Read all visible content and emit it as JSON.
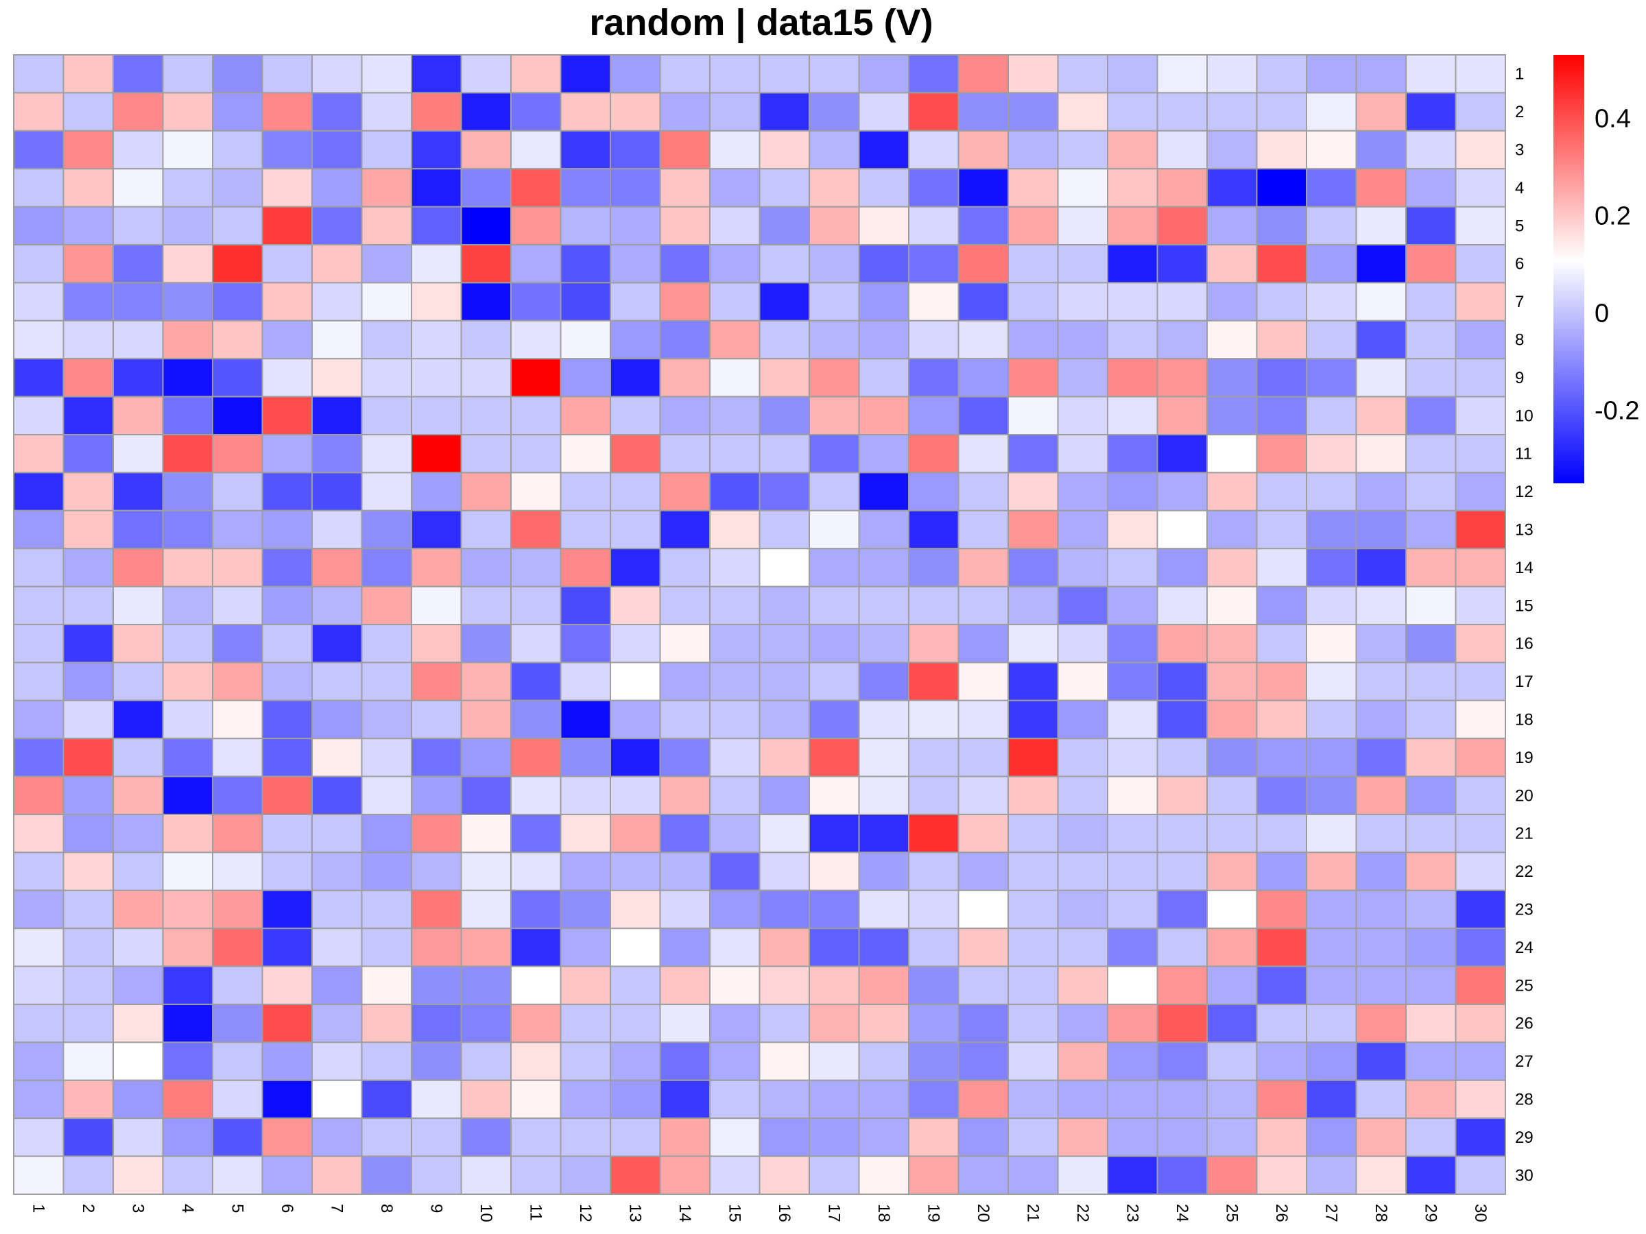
{
  "chart_data": {
    "type": "heatmap",
    "title": "random | data15 (V)",
    "row_labels": [
      "1",
      "2",
      "3",
      "4",
      "5",
      "6",
      "7",
      "8",
      "9",
      "10",
      "11",
      "12",
      "13",
      "14",
      "15",
      "16",
      "17",
      "18",
      "19",
      "20",
      "21",
      "22",
      "23",
      "24",
      "25",
      "26",
      "27",
      "28",
      "29",
      "30"
    ],
    "col_labels": [
      "1",
      "2",
      "3",
      "4",
      "5",
      "6",
      "7",
      "8",
      "9",
      "10",
      "11",
      "12",
      "13",
      "14",
      "15",
      "16",
      "17",
      "18",
      "19",
      "20",
      "21",
      "22",
      "23",
      "24",
      "25",
      "26",
      "27",
      "28",
      "29",
      "30"
    ],
    "color_scale": {
      "min": -0.35,
      "mid": 0.1,
      "max": 0.53,
      "low": "#0000FF",
      "mid_color": "#FFFFFF",
      "high": "#FF0000"
    },
    "legend_ticks": [
      0.4,
      0.2,
      0,
      -0.2
    ],
    "legend_tick_labels": [
      "0.4",
      "0.2",
      "0",
      "-0.2"
    ],
    "values": [
      [
        0.0,
        0.2,
        -0.15,
        0.0,
        -0.1,
        0.0,
        0.03,
        0.05,
        -0.27,
        0.02,
        0.2,
        -0.3,
        -0.07,
        0.0,
        0.0,
        0.0,
        0.0,
        -0.05,
        -0.15,
        0.3,
        0.17,
        0.0,
        -0.02,
        0.07,
        0.05,
        0.0,
        -0.05,
        -0.05,
        0.05,
        0.05
      ],
      [
        0.2,
        0.0,
        0.3,
        0.2,
        -0.08,
        0.3,
        -0.15,
        0.03,
        0.32,
        -0.3,
        -0.15,
        0.2,
        0.2,
        -0.05,
        -0.02,
        -0.27,
        -0.1,
        0.03,
        0.4,
        -0.1,
        -0.1,
        0.15,
        0.0,
        0.0,
        0.0,
        0.0,
        0.07,
        0.23,
        -0.25,
        0.0
      ],
      [
        -0.15,
        0.3,
        0.03,
        0.08,
        0.0,
        -0.12,
        -0.15,
        0.0,
        -0.25,
        0.23,
        0.06,
        -0.25,
        -0.18,
        0.32,
        0.06,
        0.17,
        -0.03,
        -0.3,
        0.03,
        0.23,
        -0.03,
        0.0,
        0.23,
        0.05,
        -0.03,
        0.15,
        0.12,
        -0.1,
        0.03,
        0.15
      ],
      [
        0.0,
        0.2,
        0.08,
        0.0,
        -0.03,
        0.17,
        -0.07,
        0.25,
        -0.3,
        -0.12,
        0.38,
        -0.12,
        -0.13,
        0.2,
        -0.05,
        0.0,
        0.2,
        0.0,
        -0.15,
        -0.32,
        0.2,
        0.08,
        0.2,
        0.25,
        -0.25,
        -0.35,
        -0.15,
        0.3,
        -0.05,
        0.03
      ],
      [
        -0.08,
        -0.05,
        0.0,
        -0.03,
        0.0,
        0.43,
        -0.15,
        0.2,
        -0.18,
        -0.35,
        0.28,
        -0.03,
        -0.05,
        0.2,
        0.03,
        -0.1,
        0.23,
        0.13,
        0.03,
        -0.15,
        0.25,
        0.06,
        0.25,
        0.35,
        -0.05,
        -0.1,
        0.0,
        0.06,
        -0.22,
        0.06
      ],
      [
        0.0,
        0.28,
        -0.15,
        0.17,
        0.45,
        0.0,
        0.2,
        -0.05,
        0.06,
        0.42,
        -0.05,
        -0.2,
        -0.05,
        -0.15,
        -0.05,
        0.0,
        -0.03,
        -0.18,
        -0.15,
        0.33,
        0.0,
        0.0,
        -0.3,
        -0.25,
        0.2,
        0.4,
        -0.07,
        -0.33,
        0.3,
        0.0
      ],
      [
        0.03,
        -0.12,
        -0.12,
        -0.1,
        -0.15,
        0.2,
        0.03,
        0.08,
        0.15,
        -0.33,
        -0.15,
        -0.22,
        0.0,
        0.28,
        0.0,
        -0.3,
        0.0,
        -0.08,
        0.12,
        -0.2,
        0.0,
        0.03,
        0.03,
        0.03,
        -0.05,
        0.0,
        0.03,
        0.08,
        0.0,
        0.2
      ],
      [
        0.05,
        0.03,
        0.03,
        0.25,
        0.2,
        -0.05,
        0.08,
        0.0,
        0.03,
        0.0,
        0.05,
        0.08,
        -0.08,
        -0.12,
        0.25,
        0.0,
        -0.03,
        -0.05,
        0.03,
        0.05,
        -0.05,
        -0.05,
        0.0,
        -0.03,
        0.12,
        0.2,
        0.0,
        -0.2,
        0.0,
        -0.05
      ],
      [
        -0.25,
        0.3,
        -0.25,
        -0.32,
        -0.2,
        0.05,
        0.15,
        0.03,
        0.03,
        0.03,
        0.55,
        -0.08,
        -0.3,
        0.23,
        0.08,
        0.2,
        0.28,
        0.0,
        -0.15,
        -0.08,
        0.3,
        -0.03,
        0.3,
        0.28,
        -0.1,
        -0.15,
        -0.12,
        0.06,
        0.0,
        0.0
      ],
      [
        0.03,
        -0.27,
        0.23,
        -0.15,
        -0.33,
        0.4,
        -0.3,
        0.0,
        0.0,
        0.0,
        0.0,
        0.25,
        0.0,
        -0.05,
        -0.03,
        -0.1,
        0.23,
        0.25,
        -0.08,
        -0.18,
        0.08,
        0.03,
        0.05,
        0.25,
        -0.1,
        -0.12,
        0.0,
        0.2,
        -0.12,
        0.03
      ],
      [
        0.2,
        -0.15,
        0.06,
        0.4,
        0.3,
        -0.05,
        -0.12,
        0.05,
        0.53,
        0.0,
        0.0,
        0.12,
        0.35,
        0.0,
        0.0,
        0.0,
        -0.15,
        -0.05,
        0.33,
        0.05,
        -0.15,
        0.03,
        -0.15,
        -0.28,
        0.1,
        0.28,
        0.17,
        0.13,
        0.0,
        0.0
      ],
      [
        -0.27,
        0.2,
        -0.25,
        -0.1,
        0.0,
        -0.2,
        -0.22,
        0.05,
        -0.07,
        0.25,
        0.12,
        0.0,
        0.0,
        0.28,
        -0.2,
        -0.15,
        0.0,
        -0.32,
        -0.08,
        0.0,
        0.17,
        -0.05,
        -0.08,
        -0.05,
        0.2,
        0.0,
        0.0,
        -0.05,
        0.0,
        -0.05
      ],
      [
        -0.08,
        0.2,
        -0.15,
        -0.12,
        -0.05,
        -0.07,
        0.03,
        -0.1,
        -0.27,
        0.0,
        0.35,
        0.0,
        0.0,
        -0.28,
        0.15,
        0.0,
        0.08,
        -0.05,
        -0.28,
        0.0,
        0.28,
        -0.05,
        0.15,
        0.1,
        -0.05,
        0.0,
        -0.1,
        -0.1,
        -0.05,
        0.42
      ],
      [
        0.0,
        -0.05,
        0.3,
        0.2,
        0.2,
        -0.15,
        0.28,
        -0.12,
        0.25,
        -0.05,
        -0.03,
        0.3,
        -0.28,
        0.0,
        0.03,
        0.1,
        -0.05,
        -0.05,
        -0.1,
        0.23,
        -0.12,
        -0.03,
        0.0,
        -0.08,
        0.2,
        0.05,
        -0.15,
        -0.25,
        0.23,
        0.23
      ],
      [
        0.0,
        0.0,
        0.06,
        -0.03,
        0.03,
        -0.07,
        -0.03,
        0.25,
        0.08,
        0.0,
        0.0,
        -0.22,
        0.17,
        0.0,
        0.0,
        -0.03,
        0.0,
        0.0,
        0.0,
        0.0,
        -0.03,
        -0.15,
        -0.05,
        0.05,
        0.12,
        -0.08,
        0.03,
        0.05,
        0.08,
        0.03
      ],
      [
        0.0,
        -0.25,
        0.2,
        0.0,
        -0.12,
        0.0,
        -0.27,
        0.0,
        0.2,
        -0.1,
        0.03,
        -0.15,
        0.03,
        0.12,
        -0.03,
        -0.03,
        -0.05,
        -0.03,
        0.22,
        -0.08,
        0.06,
        0.03,
        -0.12,
        0.25,
        0.23,
        0.0,
        0.12,
        -0.03,
        -0.1,
        0.2
      ],
      [
        0.0,
        -0.08,
        0.0,
        0.2,
        0.25,
        -0.03,
        0.0,
        0.0,
        0.3,
        0.23,
        -0.2,
        0.03,
        0.1,
        -0.05,
        -0.03,
        -0.03,
        0.0,
        -0.12,
        0.4,
        0.12,
        -0.25,
        0.12,
        -0.13,
        -0.2,
        0.23,
        0.25,
        0.06,
        0.0,
        0.0,
        0.0
      ],
      [
        -0.05,
        0.03,
        -0.3,
        0.03,
        0.12,
        -0.18,
        -0.08,
        -0.03,
        0.0,
        0.23,
        -0.1,
        -0.33,
        -0.05,
        0.0,
        0.0,
        -0.03,
        -0.13,
        0.05,
        0.06,
        0.05,
        -0.25,
        -0.08,
        0.05,
        -0.2,
        0.25,
        0.2,
        0.0,
        -0.05,
        0.0,
        0.12
      ],
      [
        -0.15,
        0.4,
        0.0,
        -0.15,
        0.05,
        -0.18,
        0.13,
        0.03,
        -0.15,
        -0.08,
        0.33,
        -0.1,
        -0.3,
        -0.12,
        0.03,
        0.2,
        0.38,
        0.06,
        0.0,
        0.0,
        0.45,
        0.0,
        0.03,
        0.0,
        -0.1,
        -0.08,
        -0.08,
        -0.15,
        0.2,
        0.25
      ],
      [
        0.3,
        -0.07,
        0.23,
        -0.32,
        -0.15,
        0.35,
        -0.2,
        0.05,
        -0.07,
        -0.17,
        0.05,
        0.03,
        0.03,
        0.23,
        0.0,
        -0.07,
        0.12,
        0.06,
        0.0,
        0.03,
        0.2,
        0.0,
        0.12,
        0.2,
        0.0,
        -0.13,
        -0.1,
        0.25,
        -0.08,
        0.0
      ],
      [
        0.17,
        -0.08,
        -0.05,
        0.2,
        0.28,
        0.0,
        0.0,
        -0.08,
        0.3,
        0.12,
        -0.15,
        0.15,
        0.25,
        -0.15,
        -0.03,
        0.06,
        -0.27,
        -0.27,
        0.45,
        0.2,
        0.0,
        -0.03,
        0.0,
        0.0,
        0.0,
        0.0,
        0.06,
        0.0,
        0.0,
        0.0
      ],
      [
        0.0,
        0.17,
        0.0,
        0.08,
        0.06,
        0.0,
        -0.03,
        -0.07,
        -0.03,
        0.06,
        0.05,
        -0.05,
        -0.03,
        -0.03,
        -0.17,
        0.03,
        0.13,
        -0.07,
        0.0,
        -0.05,
        0.0,
        0.0,
        0.0,
        0.0,
        0.23,
        -0.07,
        0.23,
        -0.07,
        0.23,
        0.03
      ],
      [
        -0.05,
        0.0,
        0.25,
        0.22,
        0.27,
        -0.3,
        0.0,
        0.0,
        0.33,
        0.06,
        -0.15,
        -0.1,
        0.15,
        0.03,
        -0.08,
        -0.12,
        -0.12,
        0.05,
        0.03,
        0.1,
        0.0,
        -0.03,
        0.0,
        -0.15,
        0.1,
        0.3,
        -0.05,
        -0.05,
        -0.03,
        -0.25
      ],
      [
        0.06,
        0.0,
        0.03,
        0.23,
        0.35,
        -0.25,
        0.03,
        0.0,
        0.27,
        0.25,
        -0.27,
        -0.05,
        0.1,
        -0.08,
        0.05,
        0.23,
        -0.18,
        -0.18,
        0.0,
        0.2,
        0.0,
        0.0,
        -0.12,
        0.0,
        0.25,
        0.4,
        -0.05,
        -0.05,
        -0.07,
        -0.15
      ],
      [
        0.03,
        0.0,
        -0.05,
        -0.25,
        0.0,
        0.17,
        -0.08,
        0.12,
        -0.1,
        -0.1,
        0.1,
        0.2,
        0.0,
        0.2,
        0.12,
        0.17,
        0.2,
        0.25,
        -0.1,
        0.0,
        0.0,
        0.2,
        0.1,
        0.28,
        -0.05,
        -0.18,
        -0.05,
        -0.05,
        -0.05,
        0.33
      ],
      [
        0.0,
        0.0,
        0.15,
        -0.32,
        -0.1,
        0.4,
        -0.03,
        0.2,
        -0.15,
        -0.12,
        0.25,
        0.0,
        0.0,
        0.06,
        -0.05,
        0.0,
        0.23,
        0.2,
        -0.07,
        -0.12,
        0.0,
        -0.05,
        0.27,
        0.38,
        -0.18,
        0.0,
        0.0,
        0.28,
        0.17,
        0.2
      ],
      [
        -0.05,
        0.08,
        0.1,
        -0.15,
        0.0,
        -0.07,
        0.03,
        0.0,
        -0.1,
        0.0,
        0.15,
        0.0,
        -0.05,
        -0.15,
        -0.05,
        0.12,
        0.06,
        0.0,
        -0.1,
        -0.12,
        0.03,
        0.23,
        -0.08,
        -0.12,
        0.0,
        -0.05,
        -0.08,
        -0.22,
        -0.05,
        -0.05
      ],
      [
        -0.05,
        0.22,
        -0.08,
        0.32,
        0.03,
        -0.33,
        0.1,
        -0.22,
        0.06,
        0.2,
        0.12,
        -0.05,
        -0.08,
        -0.25,
        0.0,
        -0.03,
        -0.05,
        -0.05,
        -0.12,
        0.28,
        -0.03,
        -0.05,
        -0.05,
        -0.05,
        -0.03,
        0.3,
        -0.22,
        0.0,
        0.23,
        0.17
      ],
      [
        0.03,
        -0.22,
        0.03,
        -0.08,
        -0.2,
        0.28,
        -0.05,
        0.0,
        0.0,
        -0.12,
        0.0,
        0.0,
        0.0,
        0.25,
        0.07,
        -0.08,
        -0.07,
        -0.05,
        0.2,
        -0.08,
        0.0,
        0.23,
        -0.05,
        -0.05,
        -0.03,
        0.2,
        -0.08,
        0.23,
        0.0,
        -0.25
      ],
      [
        0.08,
        0.0,
        0.15,
        0.0,
        0.05,
        -0.05,
        0.2,
        -0.1,
        0.0,
        0.05,
        0.0,
        -0.03,
        0.38,
        0.25,
        0.03,
        0.17,
        0.0,
        0.12,
        0.25,
        -0.05,
        -0.05,
        0.06,
        -0.27,
        -0.17,
        0.3,
        0.17,
        -0.03,
        0.15,
        -0.25,
        0.0
      ]
    ]
  }
}
